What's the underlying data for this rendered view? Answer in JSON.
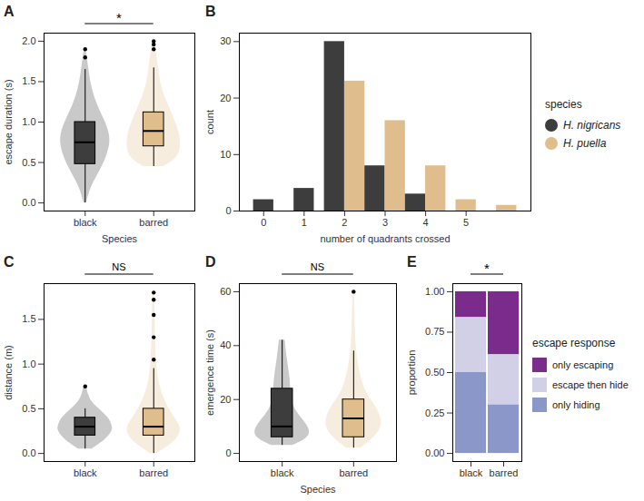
{
  "chart_data": [
    {
      "panel": "A",
      "type": "violin",
      "ylabel": "escape duration (s)",
      "xlabel": "Species",
      "categories": [
        "black",
        "barred"
      ],
      "colors": [
        "#3d3d3d",
        "#e0bd8c"
      ],
      "ylim": [
        -0.1,
        2.1
      ],
      "yticks": [
        {
          "value": 0,
          "label": "0.0"
        },
        {
          "value": 0.5,
          "label": "0.5"
        },
        {
          "value": 1,
          "label": "1.0"
        },
        {
          "value": 1.5,
          "label": "1.5"
        },
        {
          "value": 2,
          "label": "2.0"
        }
      ],
      "significance": "*",
      "box": [
        {
          "low": 0.0,
          "q1": 0.48,
          "median": 0.75,
          "q3": 1.0,
          "high": 1.65
        },
        {
          "low": 0.45,
          "q1": 0.7,
          "median": 0.89,
          "q3": 1.12,
          "high": 1.67
        }
      ],
      "outliers": [
        [
          1.8,
          1.9
        ],
        [
          1.9,
          1.96,
          2.0
        ]
      ],
      "violin": [
        {
          "y": [
            0,
            0.2,
            0.4,
            0.6,
            0.8,
            1.0,
            1.2,
            1.4,
            1.6,
            1.8,
            1.9
          ],
          "half_width": [
            0.02,
            0.08,
            0.22,
            0.33,
            0.38,
            0.3,
            0.18,
            0.1,
            0.06,
            0.03,
            0.01
          ]
        },
        {
          "y": [
            0.45,
            0.55,
            0.7,
            0.85,
            1.0,
            1.2,
            1.4,
            1.6,
            1.8,
            2.0
          ],
          "half_width": [
            0.15,
            0.35,
            0.4,
            0.38,
            0.32,
            0.22,
            0.12,
            0.08,
            0.05,
            0.02
          ]
        }
      ]
    },
    {
      "panel": "B",
      "type": "bar",
      "ylabel": "count",
      "xlabel": "number of quadrants crossed",
      "categories": [
        "0",
        "1",
        "2",
        "3",
        "4",
        "5",
        null
      ],
      "series": [
        {
          "name": "H. nigricans",
          "color": "#3d3d3d",
          "values": [
            2,
            4,
            30,
            8,
            3,
            null,
            null
          ]
        },
        {
          "name": "H. puella",
          "color": "#e0bd8c",
          "values": [
            null,
            null,
            23,
            16,
            8,
            2,
            1
          ]
        }
      ],
      "ylim": [
        0,
        31.5
      ],
      "yticks": [
        0,
        10,
        20,
        30
      ],
      "legend": "right",
      "legend_title": "species"
    },
    {
      "panel": "C",
      "type": "violin",
      "ylabel": "distance (m)",
      "categories": [
        "black",
        "barred"
      ],
      "colors": [
        "#3d3d3d",
        "#e0bd8c"
      ],
      "ylim": [
        -0.09,
        1.9
      ],
      "yticks": [
        {
          "value": 0,
          "label": "0.0"
        },
        {
          "value": 0.5,
          "label": "0.5"
        },
        {
          "value": 1,
          "label": "1.0"
        },
        {
          "value": 1.5,
          "label": "1.5"
        }
      ],
      "significance": "NS",
      "box": [
        {
          "low": 0.05,
          "q1": 0.2,
          "median": 0.3,
          "q3": 0.4,
          "high": 0.5
        },
        {
          "low": 0.0,
          "q1": 0.2,
          "median": 0.3,
          "q3": 0.5,
          "high": 0.95
        }
      ],
      "outliers": [
        [
          0.75
        ],
        [
          1.05,
          1.3,
          1.55,
          1.72,
          1.8
        ]
      ],
      "violin": [
        {
          "y": [
            0.05,
            0.15,
            0.25,
            0.3,
            0.4,
            0.5,
            0.6,
            0.75
          ],
          "half_width": [
            0.1,
            0.3,
            0.4,
            0.4,
            0.35,
            0.2,
            0.06,
            0.02
          ]
        },
        {
          "y": [
            0,
            0.1,
            0.2,
            0.3,
            0.4,
            0.6,
            0.8,
            1.0,
            1.2,
            1.4,
            1.6,
            1.8
          ],
          "half_width": [
            0.05,
            0.25,
            0.38,
            0.4,
            0.3,
            0.15,
            0.07,
            0.04,
            0.03,
            0.02,
            0.02,
            0.01
          ]
        }
      ]
    },
    {
      "panel": "D",
      "type": "violin",
      "ylabel": "emergence time (s)",
      "xlabel": "Species",
      "categories": [
        "black",
        "barred"
      ],
      "colors": [
        "#3d3d3d",
        "#e0bd8c"
      ],
      "ylim": [
        -3,
        63
      ],
      "yticks": [
        0,
        20,
        40,
        60
      ],
      "significance": "NS",
      "box": [
        {
          "low": 3,
          "q1": 6,
          "median": 10,
          "q3": 24,
          "high": 42
        },
        {
          "low": 2,
          "q1": 6,
          "median": 13,
          "q3": 20,
          "high": 38
        }
      ],
      "outliers": [
        [],
        [
          60
        ]
      ],
      "violin": [
        {
          "y": [
            3,
            6,
            10,
            15,
            20,
            25,
            30,
            35,
            42
          ],
          "half_width": [
            0.15,
            0.4,
            0.38,
            0.2,
            0.12,
            0.12,
            0.1,
            0.07,
            0.04
          ]
        },
        {
          "y": [
            2,
            6,
            10,
            14,
            18,
            22,
            28,
            34,
            40,
            50,
            60
          ],
          "half_width": [
            0.1,
            0.3,
            0.4,
            0.38,
            0.3,
            0.18,
            0.1,
            0.06,
            0.03,
            0.02,
            0.01
          ]
        }
      ]
    },
    {
      "panel": "E",
      "type": "bar",
      "stacked": true,
      "ylabel": "proportion",
      "categories": [
        "black",
        "barred"
      ],
      "series": [
        {
          "name": "only escaping",
          "color": "#7a2b8c",
          "values": [
            0.16,
            0.39
          ]
        },
        {
          "name": "escape then hide",
          "color": "#d2d0e6",
          "values": [
            0.34,
            0.31
          ]
        },
        {
          "name": "only hiding",
          "color": "#8b96c9",
          "values": [
            0.5,
            0.3
          ]
        }
      ],
      "ylim": [
        -0.05,
        1.05
      ],
      "yticks": [
        {
          "value": 0,
          "label": "0.00"
        },
        {
          "value": 0.25,
          "label": "0.25"
        },
        {
          "value": 0.5,
          "label": "0.50"
        },
        {
          "value": 0.75,
          "label": "0.75"
        },
        {
          "value": 1,
          "label": "1.00"
        }
      ],
      "significance": "*",
      "legend": "right",
      "legend_title": "escape response"
    }
  ]
}
